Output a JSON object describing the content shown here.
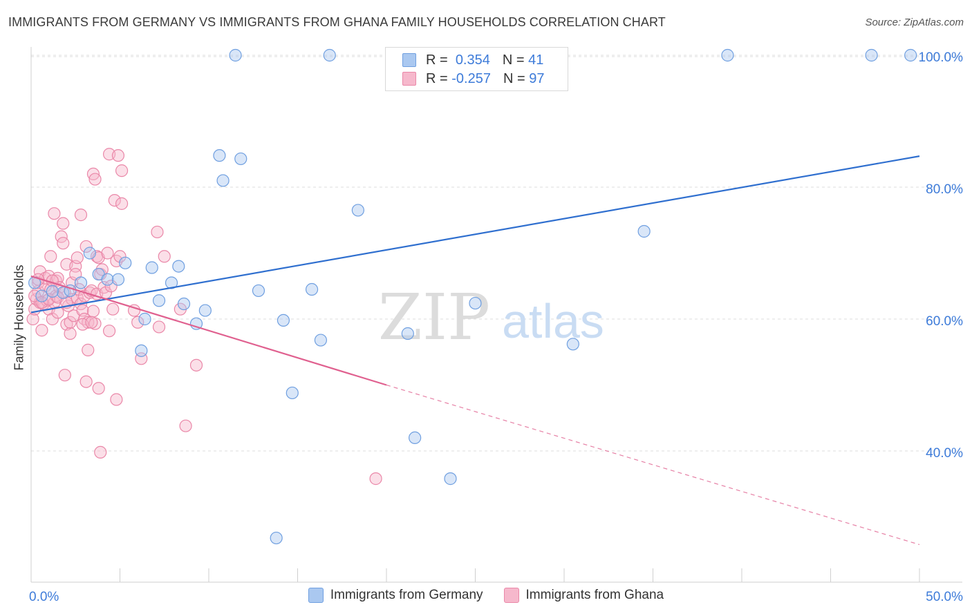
{
  "header": {
    "title": "IMMIGRANTS FROM GERMANY VS IMMIGRANTS FROM GHANA FAMILY HOUSEHOLDS CORRELATION CHART",
    "source": "Source: ZipAtlas.com"
  },
  "legend": {
    "germany": {
      "r_label": "R =",
      "r_value": "0.354",
      "n_label": "N =",
      "n_value": "41"
    },
    "ghana": {
      "r_label": "R =",
      "r_value": "-0.257",
      "n_label": "N =",
      "n_value": "97"
    }
  },
  "watermark": {
    "zip": "ZIP",
    "atlas": "atlas"
  },
  "colors": {
    "germany_fill": "#aac8f0",
    "germany_stroke": "#6f9fe0",
    "germany_line": "#2f6fcf",
    "ghana_fill": "#f6b8cc",
    "ghana_stroke": "#ea87a8",
    "ghana_line": "#e0608f",
    "tick_label": "#3d7bd9",
    "grid": "#dddddd"
  },
  "chart_data": {
    "type": "scatter",
    "title": "IMMIGRANTS FROM GERMANY VS IMMIGRANTS FROM GHANA FAMILY HOUSEHOLDS CORRELATION CHART",
    "xlabel": "",
    "ylabel": "Family Households",
    "xlim": [
      0,
      50
    ],
    "ylim": [
      22,
      102
    ],
    "x_tick_labels": [
      {
        "value": 0,
        "label": "0.0%"
      },
      {
        "value": 50,
        "label": "50.0%"
      }
    ],
    "y_tick_labels": [
      {
        "value": 40,
        "label": "40.0%"
      },
      {
        "value": 60,
        "label": "60.0%"
      },
      {
        "value": 80,
        "label": "80.0%"
      },
      {
        "value": 100,
        "label": "100.0%"
      }
    ],
    "x_minor_ticks": [
      0,
      5,
      10,
      15,
      20,
      25,
      30,
      35,
      40,
      45,
      50
    ],
    "series": [
      {
        "name": "Immigrants from Germany",
        "key": "germany",
        "points": [
          [
            0.2,
            65.5
          ],
          [
            0.6,
            63.5
          ],
          [
            1.8,
            64
          ],
          [
            2.8,
            65.5
          ],
          [
            3.3,
            70
          ],
          [
            3.8,
            66.8
          ],
          [
            4.3,
            66
          ],
          [
            4.9,
            66
          ],
          [
            5.3,
            68.5
          ],
          [
            6.2,
            55.2
          ],
          [
            6.4,
            60
          ],
          [
            6.8,
            67.8
          ],
          [
            7.2,
            62.8
          ],
          [
            7.9,
            65.5
          ],
          [
            8.3,
            68
          ],
          [
            8.6,
            62.3
          ],
          [
            9.3,
            59.3
          ],
          [
            9.8,
            61.3
          ],
          [
            10.6,
            84.8
          ],
          [
            10.8,
            81
          ],
          [
            11.5,
            100
          ],
          [
            11.8,
            84.3
          ],
          [
            12.8,
            64.3
          ],
          [
            13.8,
            26.8
          ],
          [
            14.2,
            59.8
          ],
          [
            14.7,
            48.8
          ],
          [
            15.8,
            64.5
          ],
          [
            16.3,
            56.8
          ],
          [
            16.8,
            100
          ],
          [
            18.4,
            76.5
          ],
          [
            21.2,
            57.8
          ],
          [
            21.6,
            42
          ],
          [
            23.6,
            35.8
          ],
          [
            25.0,
            62.4
          ],
          [
            30.5,
            56.2
          ],
          [
            34.5,
            73.3
          ],
          [
            39.2,
            100
          ],
          [
            47.3,
            100
          ],
          [
            49.5,
            100
          ],
          [
            1.2,
            64.2
          ],
          [
            2.2,
            64.3
          ]
        ],
        "trend": {
          "x1": 0,
          "y1": 61,
          "x2": 50,
          "y2": 84.7,
          "dashed": false
        }
      },
      {
        "name": "Immigrants from Ghana",
        "key": "ghana",
        "points": [
          [
            0.1,
            60
          ],
          [
            0.2,
            61.5
          ],
          [
            0.3,
            63
          ],
          [
            0.4,
            64.2
          ],
          [
            0.4,
            65.5
          ],
          [
            0.5,
            67.2
          ],
          [
            0.5,
            62.5
          ],
          [
            0.6,
            58.3
          ],
          [
            0.7,
            62.3
          ],
          [
            0.8,
            65
          ],
          [
            0.8,
            66.2
          ],
          [
            0.9,
            62.8
          ],
          [
            1.0,
            66.5
          ],
          [
            1.0,
            61.5
          ],
          [
            1.1,
            69.5
          ],
          [
            1.1,
            64.5
          ],
          [
            1.2,
            60
          ],
          [
            1.3,
            76
          ],
          [
            1.3,
            62.5
          ],
          [
            1.4,
            63.5
          ],
          [
            1.4,
            65.8
          ],
          [
            1.5,
            66.2
          ],
          [
            1.5,
            61
          ],
          [
            1.6,
            64.8
          ],
          [
            1.7,
            72.5
          ],
          [
            1.8,
            74.5
          ],
          [
            1.8,
            71.5
          ],
          [
            1.9,
            51.5
          ],
          [
            1.9,
            64
          ],
          [
            2.0,
            59.2
          ],
          [
            2.0,
            68.3
          ],
          [
            2.1,
            62
          ],
          [
            2.2,
            57.8
          ],
          [
            2.2,
            59.5
          ],
          [
            2.3,
            63
          ],
          [
            2.3,
            65.5
          ],
          [
            2.4,
            60.5
          ],
          [
            2.5,
            68
          ],
          [
            2.5,
            66.8
          ],
          [
            2.6,
            69.3
          ],
          [
            2.6,
            63.2
          ],
          [
            2.7,
            64.5
          ],
          [
            2.8,
            75.8
          ],
          [
            2.8,
            62.3
          ],
          [
            2.9,
            61.3
          ],
          [
            3.0,
            60
          ],
          [
            3.0,
            63.5
          ],
          [
            3.1,
            71
          ],
          [
            3.1,
            50.5
          ],
          [
            3.2,
            55.3
          ],
          [
            3.2,
            59.5
          ],
          [
            3.3,
            64
          ],
          [
            3.4,
            64.3
          ],
          [
            3.5,
            61.2
          ],
          [
            3.5,
            82
          ],
          [
            3.6,
            81.2
          ],
          [
            3.6,
            59.3
          ],
          [
            3.7,
            63.8
          ],
          [
            3.7,
            69.5
          ],
          [
            3.8,
            49.5
          ],
          [
            3.8,
            69.3
          ],
          [
            3.9,
            66.8
          ],
          [
            3.9,
            39.8
          ],
          [
            4.0,
            67.5
          ],
          [
            4.1,
            64.8
          ],
          [
            4.2,
            64
          ],
          [
            4.3,
            70
          ],
          [
            4.4,
            85
          ],
          [
            4.4,
            58.2
          ],
          [
            4.5,
            65
          ],
          [
            4.6,
            61.5
          ],
          [
            4.7,
            78
          ],
          [
            4.8,
            47.8
          ],
          [
            4.8,
            68.8
          ],
          [
            4.9,
            84.8
          ],
          [
            5.0,
            69.5
          ],
          [
            5.1,
            82.5
          ],
          [
            5.1,
            77.5
          ],
          [
            5.8,
            61.3
          ],
          [
            6.0,
            59.5
          ],
          [
            6.2,
            54
          ],
          [
            7.1,
            73.2
          ],
          [
            7.2,
            58.8
          ],
          [
            7.5,
            69.5
          ],
          [
            8.4,
            61.5
          ],
          [
            8.7,
            43.8
          ],
          [
            9.3,
            53
          ],
          [
            19.4,
            35.8
          ],
          [
            2.9,
            59.2
          ],
          [
            3.4,
            59.5
          ],
          [
            0.2,
            63.5
          ],
          [
            0.4,
            66
          ],
          [
            0.6,
            62.5
          ],
          [
            1.0,
            63
          ],
          [
            1.5,
            63.3
          ],
          [
            2.0,
            62.5
          ],
          [
            1.2,
            65.8
          ]
        ],
        "trend": {
          "x1": 0,
          "y1": 66.5,
          "x2": 20,
          "y2": 50,
          "dashed": false
        },
        "trend_extension": {
          "x1": 20,
          "y1": 50,
          "x2": 50,
          "y2": 25.8,
          "dashed": true
        }
      }
    ],
    "legend_position": "top-center"
  }
}
